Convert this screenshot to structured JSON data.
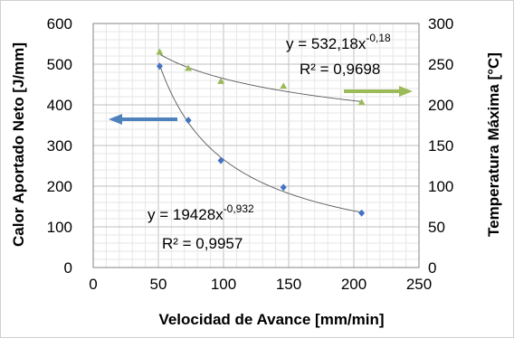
{
  "chart_data": {
    "type": "scatter",
    "xlabel": "Velocidad de Avance [mm/min]",
    "ylabel_left": "Calor Aportado Neto [J/mm]",
    "ylabel_right": "Temperatura Máxima [°C]",
    "xlim": [
      0,
      250
    ],
    "ylim_left": [
      0,
      600
    ],
    "ylim_right": [
      0,
      300
    ],
    "x_ticks": [
      "0",
      "50",
      "100",
      "150",
      "200",
      "250"
    ],
    "y_left_ticks": [
      "0",
      "100",
      "200",
      "300",
      "400",
      "500",
      "600"
    ],
    "y_right_ticks": [
      "0",
      "50",
      "100",
      "150",
      "200",
      "250",
      "300"
    ],
    "grid": true,
    "series": [
      {
        "axis": "left",
        "marker": "diamond",
        "color": "#4472C4",
        "x": [
          51,
          73,
          98,
          146,
          206
        ],
        "y": [
          495,
          362,
          263,
          197,
          134
        ],
        "trendline": {
          "type": "power",
          "a": 19428,
          "b": -0.932
        },
        "equation": {
          "prefix": "y = 19428x",
          "exponent": "-0,932",
          "r2": "R² = 0,9957"
        }
      },
      {
        "axis": "right",
        "marker": "triangle",
        "color": "#9BBB59",
        "x": [
          51,
          73,
          98,
          146,
          206
        ],
        "y": [
          265,
          245,
          229,
          223,
          203
        ],
        "trendline": {
          "type": "power",
          "a": 532.18,
          "b": -0.18
        },
        "equation": {
          "prefix": "y = 532,18x",
          "exponent": "-0,18",
          "r2": "R² = 0,9698"
        }
      }
    ],
    "indicator_arrows": [
      {
        "direction": "left",
        "color": "#4F81BD"
      },
      {
        "direction": "right",
        "color": "#9BBB59"
      }
    ]
  }
}
